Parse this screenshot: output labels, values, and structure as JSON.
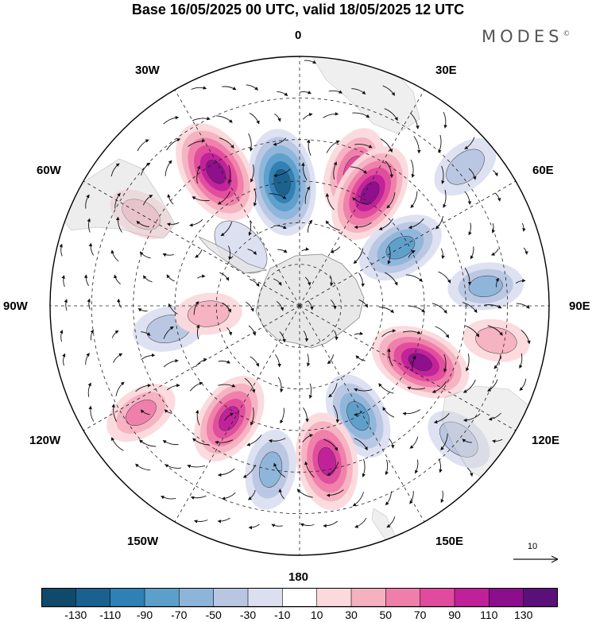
{
  "title": "Base 16/05/2025 00 UTC, valid 18/05/2025 12 UTC",
  "brand": "MODES",
  "brand_mark": "©",
  "longitude_labels": {
    "lon_0": "0",
    "lon_30e": "30E",
    "lon_60e": "60E",
    "lon_90e": "90E",
    "lon_120e": "120E",
    "lon_150e": "150E",
    "lon_180": "180",
    "lon_150w": "150W",
    "lon_120w": "120W",
    "lon_90w": "90W",
    "lon_60w": "60W",
    "lon_30w": "30W"
  },
  "reference_vector": {
    "label": "10",
    "magnitude": 10
  },
  "colorbar": {
    "tick_labels": [
      "-130",
      "-110",
      "-90",
      "-70",
      "-50",
      "-30",
      "-10",
      "10",
      "30",
      "50",
      "70",
      "90",
      "110",
      "130"
    ],
    "colors": [
      "#0f4a6b",
      "#1a6190",
      "#2f80b4",
      "#5d9fcb",
      "#8db5da",
      "#b8c6e2",
      "#dcdff0",
      "#ffffff",
      "#fbd9dc",
      "#f6b1c0",
      "#ef7eaa",
      "#e04b9d",
      "#c0209a",
      "#8d0e8c",
      "#5a1078"
    ]
  },
  "map_data": {
    "projection": "south-polar-stereographic",
    "field": "anomaly",
    "anomalies": [
      {
        "lat": -55,
        "lon": 22,
        "value": 80
      },
      {
        "lat": -58,
        "lon": 32,
        "value": 110
      },
      {
        "lat": -60,
        "lon": -8,
        "value": -120
      },
      {
        "lat": -52,
        "lon": -32,
        "value": 120
      },
      {
        "lat": -62,
        "lon": 60,
        "value": -80
      },
      {
        "lat": -58,
        "lon": 115,
        "value": 110
      },
      {
        "lat": -60,
        "lon": 152,
        "value": -80
      },
      {
        "lat": -58,
        "lon": -148,
        "value": 90
      },
      {
        "lat": -52,
        "lon": 170,
        "value": 100
      },
      {
        "lat": -50,
        "lon": -170,
        "value": -60
      },
      {
        "lat": -45,
        "lon": 84,
        "value": -50
      },
      {
        "lat": -58,
        "lon": -100,
        "value": -40
      },
      {
        "lat": -44,
        "lon": -124,
        "value": 50
      },
      {
        "lat": -46,
        "lon": -60,
        "value": 30
      },
      {
        "lat": -38,
        "lon": 50,
        "value": -40
      },
      {
        "lat": -68,
        "lon": -95,
        "value": 30
      },
      {
        "lat": -70,
        "lon": -45,
        "value": -20
      },
      {
        "lat": -42,
        "lon": 100,
        "value": 30
      },
      {
        "lat": -40,
        "lon": 130,
        "value": -40
      }
    ]
  }
}
